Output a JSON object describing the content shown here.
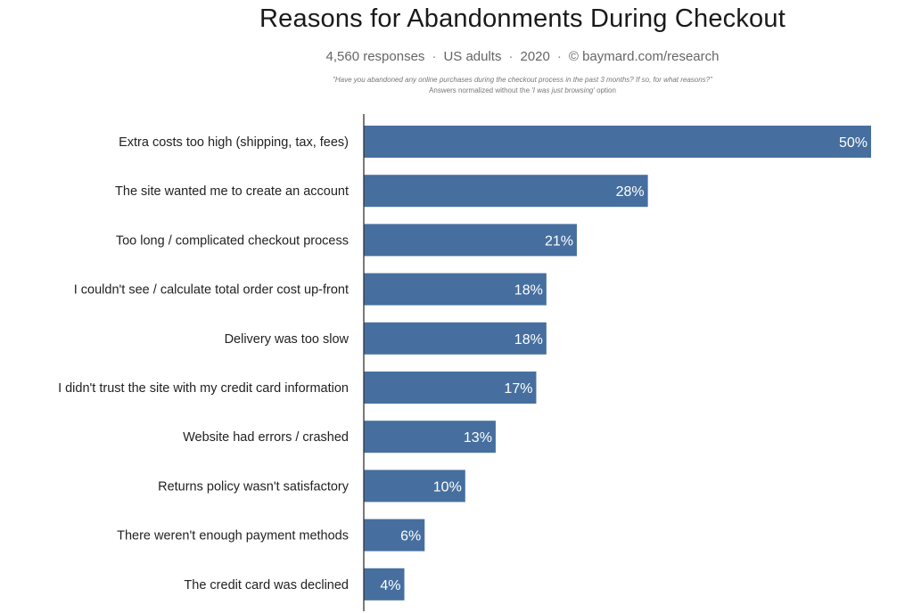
{
  "header": {
    "responses": "4,560 responses",
    "population": "US adults",
    "year": "2020",
    "source": "© baymard.com/research",
    "separator": "·",
    "question": "\"Have you abandoned any online purchases during the checkout process in the past 3 months? If so, for what reasons?\"",
    "note_prefix": "Answers normalized without the ",
    "note_option": "'I was just browsing'",
    "note_suffix": " option"
  },
  "colors": {
    "bar": "#466f9f",
    "axis": "#333333",
    "value_text": "#ffffff"
  },
  "chart_data": {
    "type": "bar",
    "orientation": "horizontal",
    "title": "Reasons for Abandonments During Checkout",
    "xlabel": "",
    "ylabel": "",
    "xlim": [
      0,
      50
    ],
    "grid": false,
    "categories": [
      "Extra costs too high (shipping, tax, fees)",
      "The site wanted me to create an account",
      "Too long / complicated checkout process",
      "I couldn't see / calculate total order cost up-front",
      "Delivery was too slow",
      "I didn't trust the site with my credit card information",
      "Website had errors / crashed",
      "Returns policy wasn't satisfactory",
      "There weren't enough payment methods",
      "The credit card was declined"
    ],
    "values": [
      50,
      28,
      21,
      18,
      18,
      17,
      13,
      10,
      6,
      4
    ],
    "value_labels": [
      "50%",
      "28%",
      "21%",
      "18%",
      "18%",
      "17%",
      "13%",
      "10%",
      "6%",
      "4%"
    ]
  }
}
